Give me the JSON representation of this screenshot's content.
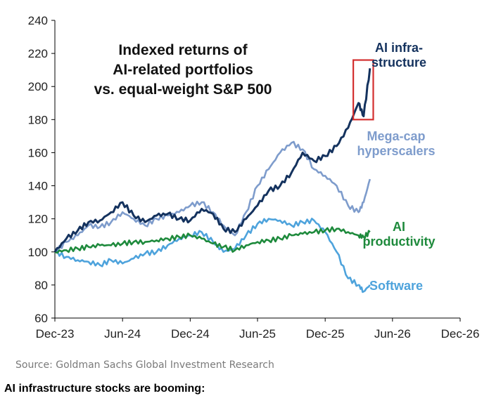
{
  "chart_data": {
    "type": "line",
    "title_lines": [
      "Indexed returns of",
      "AI-related portfolios",
      "vs. equal-weight S&P 500"
    ],
    "xlabel": "",
    "ylabel": "",
    "ylim": [
      60,
      240
    ],
    "yticks": [
      60,
      80,
      100,
      120,
      140,
      160,
      180,
      200,
      220,
      240
    ],
    "xlim": [
      "2023-12",
      "2026-12"
    ],
    "xticks": [
      "Dec-23",
      "Jun-24",
      "Dec-24",
      "Jun-25",
      "Dec-25",
      "Jun-26",
      "Dec-26"
    ],
    "grid": false,
    "legend": "inline labels at right of series",
    "series": [
      {
        "name": "AI infra-structure",
        "label_lines": [
          "AI infra-",
          "structure"
        ],
        "color": "#14325e",
        "x": [
          "2023-12-01",
          "2024-01-01",
          "2024-02-01",
          "2024-03-01",
          "2024-04-01",
          "2024-05-01",
          "2024-06-01",
          "2024-07-01",
          "2024-08-01",
          "2024-09-01",
          "2024-10-01",
          "2024-11-01",
          "2024-12-01",
          "2025-01-01",
          "2025-02-01",
          "2025-03-01",
          "2025-04-01",
          "2025-05-01",
          "2025-06-01",
          "2025-07-01",
          "2025-08-01",
          "2025-09-01",
          "2025-10-01",
          "2025-11-01",
          "2025-12-01",
          "2026-01-01",
          "2026-02-01",
          "2026-03-01",
          "2026-03-15",
          "2026-04-01"
        ],
        "values": [
          100,
          108,
          113,
          118,
          119,
          124,
          130,
          122,
          118,
          122,
          123,
          120,
          119,
          126,
          123,
          114,
          112,
          120,
          128,
          137,
          140,
          148,
          160,
          155,
          158,
          164,
          175,
          190,
          182,
          211
        ]
      },
      {
        "name": "Mega-cap hyperscalers",
        "label_lines": [
          "Mega-cap",
          "hyperscalers"
        ],
        "color": "#7e9ccc",
        "x": [
          "2023-12-01",
          "2024-01-01",
          "2024-02-01",
          "2024-03-01",
          "2024-04-01",
          "2024-05-01",
          "2024-06-01",
          "2024-07-01",
          "2024-08-01",
          "2024-09-01",
          "2024-10-01",
          "2024-11-01",
          "2024-12-01",
          "2025-01-01",
          "2025-02-01",
          "2025-03-01",
          "2025-04-01",
          "2025-05-01",
          "2025-06-01",
          "2025-07-01",
          "2025-08-01",
          "2025-09-01",
          "2025-10-01",
          "2025-11-01",
          "2025-12-01",
          "2026-01-01",
          "2026-02-01",
          "2026-03-01",
          "2026-03-15",
          "2026-04-01"
        ],
        "values": [
          100,
          106,
          110,
          116,
          115,
          118,
          124,
          120,
          116,
          120,
          122,
          124,
          128,
          130,
          124,
          116,
          110,
          124,
          140,
          150,
          160,
          166,
          162,
          150,
          146,
          140,
          128,
          124,
          130,
          144
        ]
      },
      {
        "name": "AI productivity",
        "label_lines": [
          "AI",
          "productivity"
        ],
        "color": "#1e8a3c",
        "x": [
          "2023-12-01",
          "2024-01-01",
          "2024-02-01",
          "2024-03-01",
          "2024-04-01",
          "2024-05-01",
          "2024-06-01",
          "2024-07-01",
          "2024-08-01",
          "2024-09-01",
          "2024-10-01",
          "2024-11-01",
          "2024-12-01",
          "2025-01-01",
          "2025-02-01",
          "2025-03-01",
          "2025-04-01",
          "2025-05-01",
          "2025-06-01",
          "2025-07-01",
          "2025-08-01",
          "2025-09-01",
          "2025-10-01",
          "2025-11-01",
          "2025-12-01",
          "2026-01-01",
          "2026-02-01",
          "2026-03-01",
          "2026-03-15",
          "2026-04-01"
        ],
        "values": [
          100,
          101,
          102,
          103,
          104,
          104,
          105,
          106,
          106,
          107,
          108,
          109,
          110,
          108,
          105,
          103,
          101,
          104,
          106,
          107,
          108,
          110,
          111,
          112,
          113,
          114,
          112,
          110,
          109,
          112
        ]
      },
      {
        "name": "Software",
        "label_lines": [
          "Software"
        ],
        "color": "#4ea3dc",
        "x": [
          "2023-12-01",
          "2024-01-01",
          "2024-02-01",
          "2024-03-01",
          "2024-04-01",
          "2024-05-01",
          "2024-06-01",
          "2024-07-01",
          "2024-08-01",
          "2024-09-01",
          "2024-10-01",
          "2024-11-01",
          "2024-12-01",
          "2025-01-01",
          "2025-02-01",
          "2025-03-01",
          "2025-04-01",
          "2025-05-01",
          "2025-06-01",
          "2025-07-01",
          "2025-08-01",
          "2025-09-01",
          "2025-10-01",
          "2025-11-01",
          "2025-12-01",
          "2026-01-01",
          "2026-02-01",
          "2026-03-01",
          "2026-03-15",
          "2026-04-01"
        ],
        "values": [
          100,
          97,
          95,
          94,
          92,
          95,
          93,
          96,
          99,
          100,
          104,
          108,
          110,
          112,
          106,
          100,
          102,
          110,
          117,
          120,
          119,
          116,
          118,
          119,
          112,
          100,
          84,
          80,
          76,
          80
        ]
      }
    ],
    "highlight_box": {
      "x_from": "2026-02-15",
      "x_to": "2026-04-10",
      "y_from": 180,
      "y_to": 216,
      "color": "#d32f2f"
    }
  },
  "source": "Source: Goldman Sachs Global Investment Research",
  "caption": "AI infrastructure stocks are booming:"
}
